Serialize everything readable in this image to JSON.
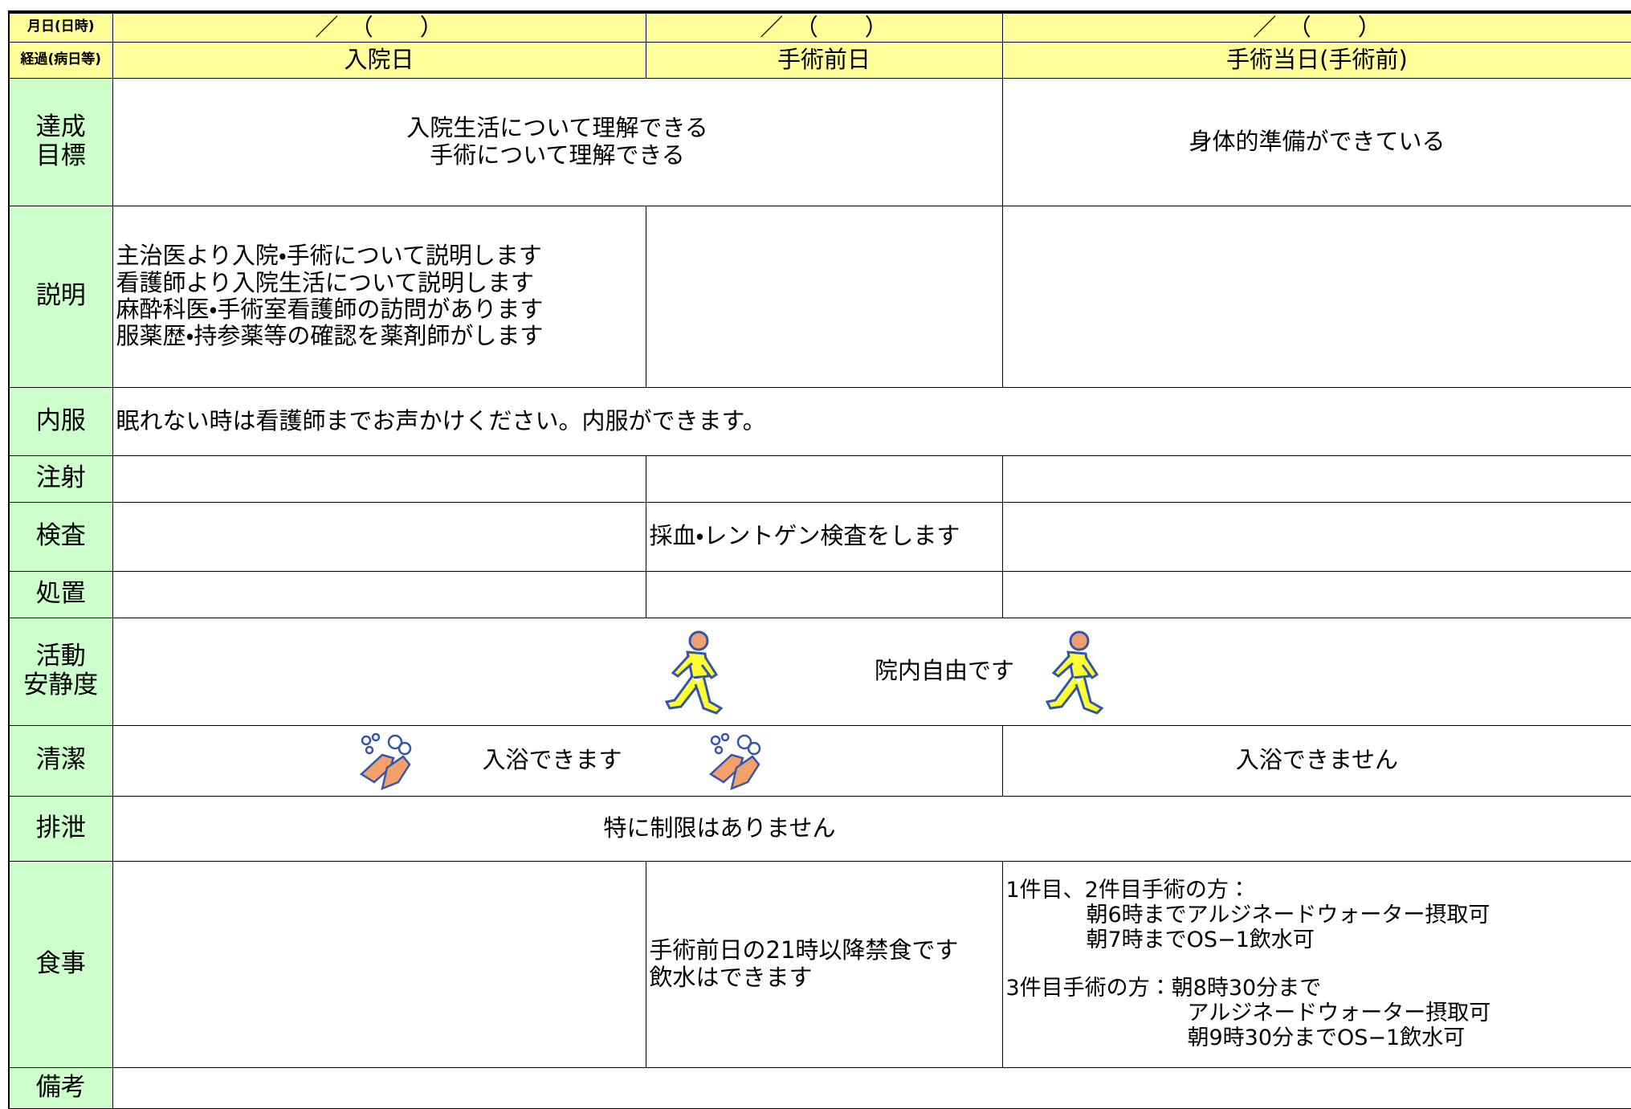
{
  "header": {
    "date_label": "月日(日時)",
    "dates": [
      "／　（　　）",
      "／　（　　）",
      "／　（　　）"
    ],
    "stage_label": "経過(病日等)",
    "stages": [
      "入院日",
      "手術前日",
      "手術当日(手術前)"
    ]
  },
  "rows": [
    {
      "label": [
        "達成",
        "目標"
      ],
      "texts": [
        [
          "入院生活について理解できる",
          "手術について理解できる"
        ],
        [
          "身体的準備ができている"
        ]
      ]
    },
    {
      "label": [
        "説明"
      ],
      "texts": [
        [
          "主治医より入院・手術について説明します",
          "看護師より入院生活について説明します",
          "麻酔科医・手術室看護師の訪問があります",
          "服薬歴・持参薬等の確認を薬剤師がします"
        ]
      ]
    },
    {
      "label": [
        "内服"
      ],
      "texts": [
        [
          "眠れない時は看護師までお声かけください。内服ができます。"
        ]
      ]
    },
    {
      "label": [
        "注射"
      ],
      "texts": []
    },
    {
      "label": [
        "検査"
      ],
      "texts": [
        [
          "採血・レントゲン検査をします"
        ]
      ]
    },
    {
      "label": [
        "処置"
      ],
      "texts": []
    },
    {
      "label": [
        "活動",
        "安静度"
      ],
      "texts": [
        [
          "院内自由です"
        ]
      ]
    },
    {
      "label": [
        "清潔"
      ],
      "texts": [
        [
          "入浴できます"
        ],
        [
          "入浴できません"
        ]
      ]
    },
    {
      "label": [
        "排泄"
      ],
      "texts": [
        [
          "特に制限はありません"
        ]
      ]
    },
    {
      "label": [
        "食事"
      ],
      "texts": [
        [
          "手術前日の21時以降禁食です",
          "飲水はできます"
        ],
        [
          "1件目、2件目手術の方：",
          "朝6時までアルジネードウォーター摂取可",
          "朝7時までOS−1飲水可",
          "3件目手術の方：朝8時30分まで",
          "アルジネードウォーター摂取可",
          "朝9時30分までOS−1飲水可"
        ]
      ]
    },
    {
      "label": [
        "備考"
      ],
      "texts": []
    }
  ]
}
